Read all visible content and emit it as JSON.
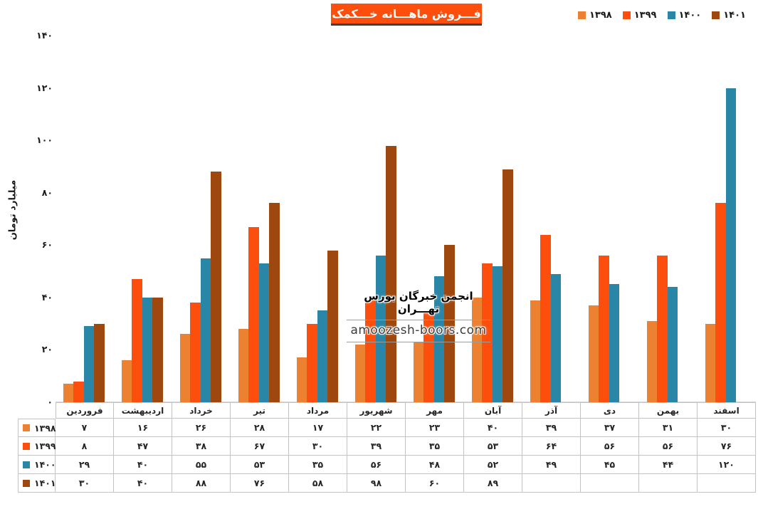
{
  "title": "فـــروش ماهـــانه خـــکمک",
  "watermark": {
    "line1": "انجمن خبرگان بورس تهـــران",
    "line2": "amoozesh-boors.com"
  },
  "colors": {
    "title_bg": "#FC4E0D",
    "title_underline": "#404040",
    "table_border": "#C3C3C3",
    "axis_line": "#D9D9D9",
    "series_1398": "#EC8132",
    "series_1399": "#FC4E0D",
    "series_1400": "#2A86A6",
    "series_1401": "#9E470E"
  },
  "chart_data": {
    "type": "bar",
    "title": "فـــروش ماهـــانه خـــکمک",
    "xlabel": "",
    "ylabel": "میلیارد تومان",
    "ylim": [
      0,
      140
    ],
    "yticks": [
      0,
      20,
      40,
      60,
      80,
      100,
      120,
      140
    ],
    "grid": false,
    "legend_position": "top-right",
    "data_table_shown": true,
    "categories": [
      "فروردین",
      "اردیبهشت",
      "خرداد",
      "تیر",
      "مرداد",
      "شهریور",
      "مهر",
      "آبان",
      "آذر",
      "دی",
      "بهمن",
      "اسفند"
    ],
    "series": [
      {
        "id": "1398",
        "name": "۱۳۹۸",
        "color": "#EC8132",
        "values": [
          7,
          16,
          26,
          28,
          17,
          22,
          23,
          40,
          39,
          37,
          31,
          30
        ]
      },
      {
        "id": "1399",
        "name": "۱۳۹۹",
        "color": "#FC4E0D",
        "values": [
          8,
          47,
          38,
          67,
          30,
          39,
          35,
          53,
          64,
          56,
          56,
          76
        ]
      },
      {
        "id": "1400",
        "name": "۱۴۰۰",
        "color": "#2A86A6",
        "values": [
          29,
          40,
          55,
          53,
          35,
          56,
          48,
          52,
          49,
          45,
          44,
          120
        ]
      },
      {
        "id": "1401",
        "name": "۱۴۰۱",
        "color": "#9E470E",
        "values": [
          30,
          40,
          88,
          76,
          58,
          98,
          60,
          89,
          null,
          null,
          null,
          null
        ]
      }
    ]
  }
}
